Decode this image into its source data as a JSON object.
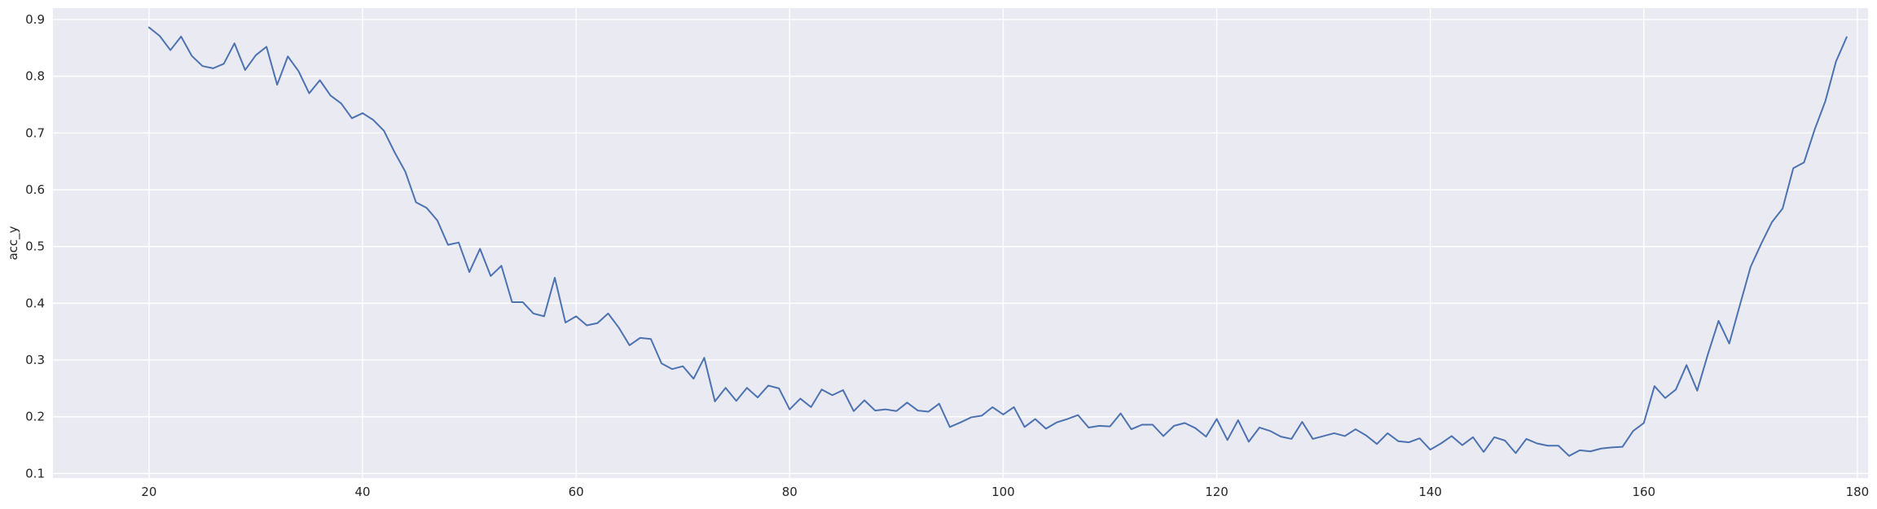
{
  "chart_data": {
    "type": "line",
    "title": "",
    "xlabel": "",
    "ylabel": "acc_y",
    "xlim": [
      11,
      181
    ],
    "ylim": [
      0.092,
      0.92
    ],
    "grid": true,
    "legend": "none",
    "colors": {
      "background": "#EAEAF2",
      "grid": "#FFFFFF",
      "line": "#4C72B0"
    },
    "x_ticks": [
      20,
      40,
      60,
      80,
      100,
      120,
      140,
      160,
      180
    ],
    "y_ticks": [
      0.1,
      0.2,
      0.3,
      0.4,
      0.5,
      0.6,
      0.7,
      0.8,
      0.9
    ],
    "x_tick_labels": [
      "20",
      "40",
      "60",
      "80",
      "100",
      "120",
      "140",
      "160",
      "180"
    ],
    "y_tick_labels": [
      "0.1",
      "0.2",
      "0.3",
      "0.4",
      "0.5",
      "0.6",
      "0.7",
      "0.8",
      "0.9"
    ],
    "series": [
      {
        "x": [
          20,
          21,
          22,
          23,
          24,
          25,
          26,
          27,
          28,
          29,
          30,
          31,
          32,
          33,
          34,
          35,
          36,
          37,
          38,
          39,
          40,
          41,
          42,
          43,
          44,
          45,
          46,
          47,
          48,
          49,
          50,
          51,
          52,
          53,
          54,
          55,
          56,
          57,
          58,
          59,
          60,
          61,
          62,
          63,
          64,
          65,
          66,
          67,
          68,
          69,
          70,
          71,
          72,
          73,
          74,
          75,
          76,
          77,
          78,
          79,
          80,
          81,
          82,
          83,
          84,
          85,
          86,
          87,
          88,
          89,
          90,
          91,
          92,
          93,
          94,
          95,
          96,
          97,
          98,
          99,
          100,
          101,
          102,
          103,
          104,
          105,
          106,
          107,
          108,
          109,
          110,
          111,
          112,
          113,
          114,
          115,
          116,
          117,
          118,
          119,
          120,
          121,
          122,
          123,
          124,
          125,
          126,
          127,
          128,
          129,
          130,
          131,
          132,
          133,
          134,
          135,
          136,
          137,
          138,
          139,
          140,
          141,
          142,
          143,
          144,
          145,
          146,
          147,
          148,
          149,
          150,
          151,
          152,
          153,
          154,
          155,
          156,
          157,
          158,
          159,
          160,
          161,
          162,
          163,
          164,
          165,
          166,
          167,
          168,
          169,
          170,
          171,
          172,
          173,
          174,
          175,
          176,
          177,
          178,
          179
        ],
        "y": [
          0.886,
          0.871,
          0.846,
          0.87,
          0.836,
          0.818,
          0.814,
          0.822,
          0.858,
          0.811,
          0.837,
          0.852,
          0.785,
          0.835,
          0.809,
          0.77,
          0.793,
          0.766,
          0.752,
          0.726,
          0.735,
          0.723,
          0.704,
          0.666,
          0.632,
          0.578,
          0.568,
          0.546,
          0.503,
          0.507,
          0.455,
          0.496,
          0.448,
          0.466,
          0.402,
          0.402,
          0.382,
          0.377,
          0.445,
          0.366,
          0.377,
          0.361,
          0.365,
          0.382,
          0.357,
          0.326,
          0.339,
          0.337,
          0.294,
          0.284,
          0.289,
          0.267,
          0.304,
          0.227,
          0.251,
          0.228,
          0.251,
          0.234,
          0.255,
          0.25,
          0.213,
          0.232,
          0.217,
          0.248,
          0.238,
          0.247,
          0.21,
          0.229,
          0.211,
          0.213,
          0.21,
          0.225,
          0.211,
          0.209,
          0.223,
          0.182,
          0.19,
          0.199,
          0.202,
          0.217,
          0.204,
          0.217,
          0.182,
          0.196,
          0.179,
          0.19,
          0.196,
          0.203,
          0.181,
          0.184,
          0.183,
          0.206,
          0.178,
          0.186,
          0.186,
          0.166,
          0.184,
          0.189,
          0.18,
          0.165,
          0.196,
          0.159,
          0.194,
          0.156,
          0.181,
          0.175,
          0.165,
          0.161,
          0.191,
          0.161,
          0.166,
          0.171,
          0.166,
          0.178,
          0.167,
          0.152,
          0.171,
          0.157,
          0.155,
          0.162,
          0.142,
          0.153,
          0.166,
          0.15,
          0.164,
          0.138,
          0.164,
          0.158,
          0.136,
          0.161,
          0.153,
          0.149,
          0.149,
          0.131,
          0.141,
          0.139,
          0.144,
          0.146,
          0.147,
          0.175,
          0.189,
          0.254,
          0.233,
          0.248,
          0.291,
          0.246,
          0.31,
          0.369,
          0.329,
          0.397,
          0.464,
          0.505,
          0.543,
          0.567,
          0.638,
          0.648,
          0.706,
          0.756,
          0.826,
          0.869
        ]
      }
    ]
  }
}
